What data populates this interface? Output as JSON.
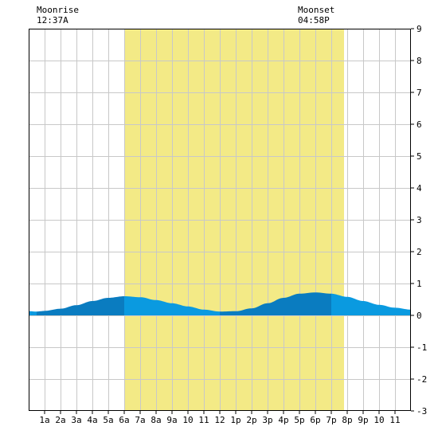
{
  "moonrise": {
    "label": "Moonrise",
    "time": "12:37A"
  },
  "moonset": {
    "label": "Moonset",
    "time": "04:58P"
  },
  "colors": {
    "daylight": "#f3ea86",
    "night": "#ffffff",
    "grid": "#c8c8c8",
    "tide_dark": "#0a7cc0",
    "tide_light": "#0a9ae0",
    "frame": "#000000"
  },
  "chart_data": {
    "type": "area",
    "title": "",
    "xlabel": "",
    "ylabel": "",
    "xlim": [
      0,
      24
    ],
    "ylim": [
      -3,
      9
    ],
    "y_ticks": [
      "9",
      "8",
      "7",
      "6",
      "5",
      "4",
      "3",
      "2",
      "1",
      "0",
      "-1",
      "-2",
      "-3"
    ],
    "y_tick_values": [
      9,
      8,
      7,
      6,
      5,
      4,
      3,
      2,
      1,
      0,
      -1,
      -2,
      -3
    ],
    "x_ticks": [
      "1a",
      "2a",
      "3a",
      "4a",
      "5a",
      "6a",
      "7a",
      "8a",
      "9a",
      "10",
      "11",
      "12",
      "1p",
      "2p",
      "3p",
      "4p",
      "5p",
      "6p",
      "7p",
      "8p",
      "9p",
      "10",
      "11"
    ],
    "x_tick_values": [
      1,
      2,
      3,
      4,
      5,
      6,
      7,
      8,
      9,
      10,
      11,
      12,
      13,
      14,
      15,
      16,
      17,
      18,
      19,
      20,
      21,
      22,
      23
    ],
    "daylight": [
      6,
      19.8
    ],
    "moonrise_hour": 0.62,
    "moonset_hour": 16.97,
    "grid": true,
    "tide": {
      "x": [
        0,
        0.5,
        1,
        2,
        3,
        4,
        5,
        6,
        7,
        8,
        9,
        10,
        11,
        12,
        13,
        14,
        15,
        16,
        17,
        18,
        19,
        20,
        21,
        22,
        23,
        24
      ],
      "y": [
        0.13,
        0.12,
        0.14,
        0.21,
        0.32,
        0.45,
        0.55,
        0.6,
        0.57,
        0.48,
        0.38,
        0.28,
        0.18,
        0.12,
        0.13,
        0.22,
        0.38,
        0.55,
        0.68,
        0.72,
        0.68,
        0.58,
        0.45,
        0.33,
        0.24,
        0.18
      ]
    }
  }
}
